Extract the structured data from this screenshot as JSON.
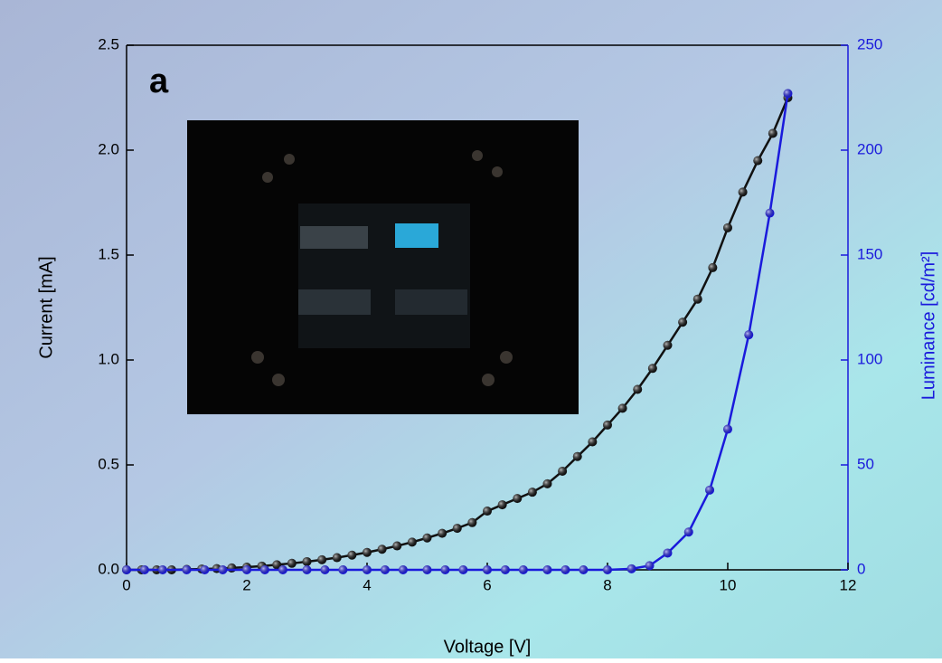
{
  "chart_data": {
    "type": "line",
    "panel_label": "a",
    "x_label": "Voltage [V]",
    "y_label": "Current [mA]",
    "y2_label": "Luminance [cd/m²]",
    "xlim": [
      0,
      12
    ],
    "xticks": [
      0,
      2,
      4,
      6,
      8,
      10,
      12
    ],
    "ylim": [
      0,
      2.5
    ],
    "yticks": [
      {
        "value": 0,
        "label": "0.0"
      },
      0.5,
      {
        "value": 1,
        "label": "1.0"
      },
      1.5,
      {
        "value": 2,
        "label": "2.0"
      },
      2.5
    ],
    "y2lim": [
      0,
      250
    ],
    "y2ticks": [
      0,
      50,
      100,
      150,
      200,
      250
    ],
    "series": [
      {
        "name": "Current",
        "color": "#111111",
        "x": [
          0,
          0.25,
          0.5,
          0.75,
          1,
          1.25,
          1.5,
          1.75,
          2,
          2.25,
          2.5,
          2.75,
          3,
          3.25,
          3.5,
          3.75,
          4,
          4.25,
          4.5,
          4.75,
          5,
          5.25,
          5.5,
          5.75,
          6,
          6.25,
          6.5,
          6.75,
          7,
          7.25,
          7.5,
          7.75,
          8,
          8.25,
          8.5,
          8.75,
          9,
          9.25,
          9.5,
          9.75,
          10,
          10.25,
          10.5,
          10.75,
          11
        ],
        "values": [
          0,
          0,
          0,
          0,
          0.002,
          0.004,
          0.006,
          0.009,
          0.013,
          0.018,
          0.024,
          0.031,
          0.039,
          0.048,
          0.058,
          0.07,
          0.083,
          0.098,
          0.114,
          0.132,
          0.152,
          0.174,
          0.198,
          0.225,
          0.28,
          0.31,
          0.34,
          0.37,
          0.41,
          0.47,
          0.54,
          0.61,
          0.69,
          0.77,
          0.86,
          0.96,
          1.07,
          1.18,
          1.29,
          1.44,
          1.63,
          1.8,
          1.95,
          2.08,
          2.25
        ]
      },
      {
        "name": "Luminance",
        "color": "#1a1adc",
        "axis": "y2",
        "x": [
          0,
          0.3,
          0.6,
          1,
          1.3,
          1.6,
          2,
          2.3,
          2.6,
          3,
          3.3,
          3.6,
          4,
          4.3,
          4.6,
          5,
          5.3,
          5.6,
          6,
          6.3,
          6.6,
          7,
          7.3,
          7.6,
          8,
          8.4,
          8.7,
          9,
          9.35,
          9.7,
          10,
          10.35,
          10.7,
          11
        ],
        "values": [
          0,
          0,
          0,
          0,
          0,
          0,
          0,
          0,
          0,
          0,
          0,
          0,
          0,
          0,
          0,
          0,
          0,
          0,
          0,
          0,
          0,
          0,
          0,
          0,
          0,
          0.5,
          2,
          8,
          18,
          38,
          67,
          112,
          170,
          227
        ]
      }
    ]
  }
}
